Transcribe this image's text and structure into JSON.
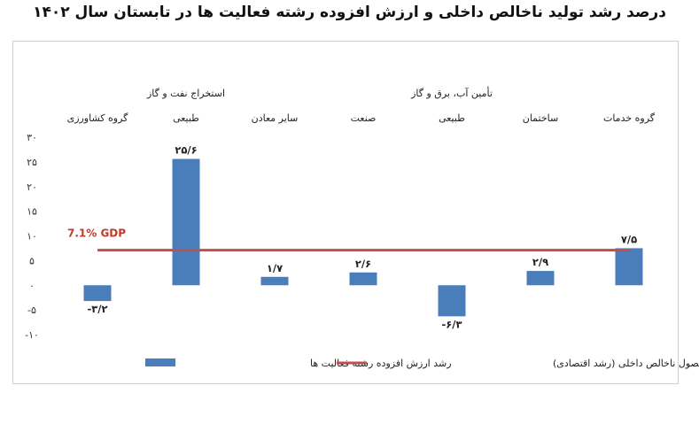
{
  "title": "درصد رشد تولید ناخالص داخلی و ارزش افزوده رشته فعالیت ها در تابستان سال ۱۴۰۲",
  "chart_data": {
    "type": "bar",
    "categories": [
      "گروه کشاورزی",
      "طبیعی",
      "سایر معادن",
      "صنعت",
      "طبیعی",
      "ساختمان",
      "گروه خدمات"
    ],
    "group_headers": [
      {
        "label": "استخراج نفت و گاز",
        "category_index": 1
      },
      {
        "label": "تأمین آب، برق و گاز",
        "category_index": 4
      }
    ],
    "series": [
      {
        "name": "رشد ارزش افزوده رشته فعالیت ها",
        "type": "bar",
        "color": "#4a7ebb",
        "values": [
          -3.2,
          25.6,
          1.7,
          2.6,
          -6.3,
          2.9,
          7.5
        ],
        "data_labels": [
          "-۳/۲",
          "۲۵/۶",
          "۱/۷",
          "۲/۶",
          "-۶/۳",
          "۲/۹",
          "۷/۵"
        ]
      },
      {
        "name": "رشد محصول ناخالص داخلی (رشد اقتصادی)",
        "type": "line",
        "color": "#c0504d",
        "value": 7.1,
        "annotation": "7.1%  GDP"
      }
    ],
    "ylim": [
      -10,
      30
    ],
    "yticks": [
      -10,
      -5,
      0,
      5,
      10,
      15,
      20,
      25,
      30
    ],
    "ytick_labels": [
      "-۱۰",
      "-۵",
      "۰",
      "۵",
      "۱۰",
      "۱۵",
      "۲۰",
      "۲۵",
      "۳۰"
    ],
    "grid": false,
    "legend_position": "bottom"
  }
}
